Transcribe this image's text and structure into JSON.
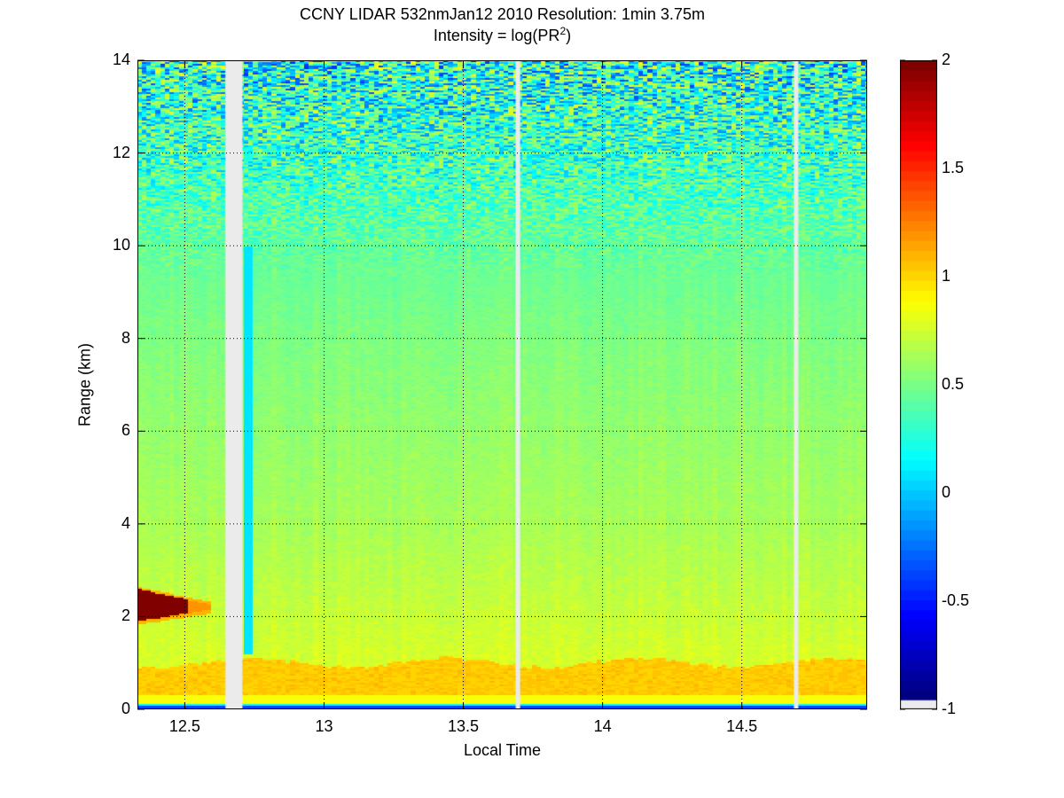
{
  "chart_data": {
    "type": "heatmap",
    "title": "CCNY LIDAR 532nmJan12 2010 Resolution: 1min 3.75m",
    "subtitle_prefix": "Intensity = log(PR",
    "subtitle_superscript": "2",
    "subtitle_suffix": ")",
    "xlabel": "Local Time",
    "ylabel": "Range (km)",
    "xlim": [
      12.33,
      14.95
    ],
    "ylim": [
      0,
      14
    ],
    "xticks": [
      "12.5",
      "13",
      "13.5",
      "14",
      "14.5"
    ],
    "xtick_values": [
      12.5,
      13,
      13.5,
      14,
      14.5
    ],
    "yticks": [
      "0",
      "2",
      "4",
      "6",
      "8",
      "10",
      "12",
      "14"
    ],
    "ytick_values": [
      0,
      2,
      4,
      6,
      8,
      10,
      12,
      14
    ],
    "grid": true,
    "colormap": "jet",
    "clim": [
      -1,
      2
    ],
    "colorbar_ticks": [
      "2",
      "1.5",
      "1",
      "0.5",
      "0",
      "-0.5",
      "-1"
    ],
    "colorbar_tick_values": [
      2,
      1.5,
      1,
      0.5,
      0,
      -0.5,
      -1
    ],
    "missing_color": "#ebebeb",
    "data_gaps_hours": [
      [
        12.646,
        12.707
      ],
      [
        13.688,
        13.704
      ],
      [
        14.687,
        14.703
      ]
    ],
    "features": [
      {
        "type": "cloud",
        "time": [
          12.33,
          12.6
        ],
        "range_km": [
          1.9,
          2.6
        ],
        "value": 2.0
      },
      {
        "type": "boundary_layer",
        "time": [
          12.33,
          14.95
        ],
        "range_km": [
          0.1,
          1.1
        ],
        "value": 1.0
      },
      {
        "type": "surface",
        "range_km": [
          0,
          0.1
        ],
        "value": -0.3
      },
      {
        "type": "low_signal_streak",
        "time": [
          12.72,
          12.74
        ],
        "range_km": [
          1.2,
          10
        ],
        "value": 0.05
      }
    ],
    "profile": {
      "range_km": [
        1.2,
        4,
        8,
        10,
        12,
        14
      ],
      "value": [
        0.75,
        0.62,
        0.5,
        0.42,
        0.3,
        0.2
      ]
    }
  }
}
